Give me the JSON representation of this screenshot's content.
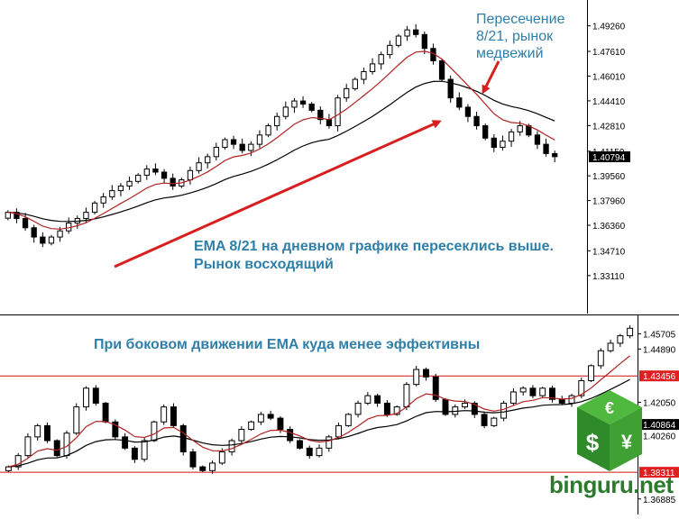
{
  "annotations": {
    "top_line1": "Пересечение",
    "top_line2": "8/21, рынок",
    "top_line3": "медвежий",
    "mid_line1": "EMA 8/21 на дневном графике пересеклись выше.",
    "mid_line2": "Рынок восходящий",
    "bottom": "При боковом движении EMA куда менее эффективны"
  },
  "logo": {
    "text": "binguru.net",
    "euro": "€",
    "dollar": "$",
    "yen": "¥"
  },
  "colors": {
    "candle": "#000000",
    "ema_fast": "#b22222",
    "ema_slow": "#000000",
    "arrow": "#d81e1e",
    "level_line": "#d01010",
    "price_tag_red": "#e02020",
    "price_tag_black": "#000000",
    "annotation_text": "#2f7fa8",
    "logo_green": "#2c7a2c"
  },
  "chart_data": [
    {
      "type": "candlestick",
      "title": "",
      "xlabel": "",
      "ylabel": "",
      "ylim": [
        1.31,
        1.5
      ],
      "y_ticks": [
        "1.49260",
        "1.47610",
        "1.46010",
        "1.44410",
        "1.42810",
        "1.41150",
        "1.39560",
        "1.37960",
        "1.36360",
        "1.34710",
        "1.33110"
      ],
      "current_price": "1.40794",
      "series": [
        {
          "name": "",
          "close": [
            1.372,
            1.368,
            1.362,
            1.356,
            1.352,
            1.356,
            1.36,
            1.365,
            1.368,
            1.372,
            1.378,
            1.382,
            1.386,
            1.389,
            1.392,
            1.396,
            1.4,
            1.398,
            1.394,
            1.389,
            1.393,
            1.399,
            1.404,
            1.408,
            1.414,
            1.419,
            1.416,
            1.412,
            1.416,
            1.422,
            1.428,
            1.434,
            1.44,
            1.444,
            1.442,
            1.438,
            1.432,
            1.428,
            1.446,
            1.452,
            1.458,
            1.463,
            1.468,
            1.474,
            1.48,
            1.486,
            1.49,
            1.487,
            1.478,
            1.47,
            1.458,
            1.446,
            1.44,
            1.434,
            1.428,
            1.42,
            1.414,
            1.418,
            1.424,
            1.428,
            1.422,
            1.416,
            1.41,
            1.408
          ]
        },
        {
          "name": "",
          "ema_period": 8
        },
        {
          "name": "",
          "ema_period": 21
        }
      ]
    },
    {
      "type": "candlestick",
      "title": "",
      "xlabel": "",
      "ylabel": "",
      "ylim": [
        1.362,
        1.464
      ],
      "y_ticks": [
        "1.45705",
        "1.44890",
        "1.43456",
        "1.42050",
        "1.40864",
        "1.40260",
        "1.38311",
        "1.36885"
      ],
      "levels": [
        "1.43456",
        "1.38311"
      ],
      "current_price": "1.40864",
      "series": [
        {
          "name": "",
          "close": [
            1.386,
            1.392,
            1.402,
            1.408,
            1.4,
            1.392,
            1.404,
            1.418,
            1.428,
            1.42,
            1.41,
            1.402,
            1.396,
            1.39,
            1.4,
            1.41,
            1.418,
            1.408,
            1.394,
            1.386,
            1.384,
            1.388,
            1.394,
            1.4,
            1.406,
            1.41,
            1.414,
            1.412,
            1.406,
            1.4,
            1.396,
            1.392,
            1.396,
            1.402,
            1.408,
            1.414,
            1.42,
            1.424,
            1.42,
            1.414,
            1.418,
            1.43,
            1.438,
            1.434,
            1.422,
            1.414,
            1.418,
            1.42,
            1.414,
            1.408,
            1.412,
            1.42,
            1.426,
            1.428,
            1.424,
            1.428,
            1.422,
            1.42,
            1.424,
            1.432,
            1.44,
            1.448,
            1.452,
            1.456,
            1.46
          ]
        },
        {
          "name": "",
          "ema_period": 8
        },
        {
          "name": "",
          "ema_period": 21
        }
      ]
    }
  ]
}
